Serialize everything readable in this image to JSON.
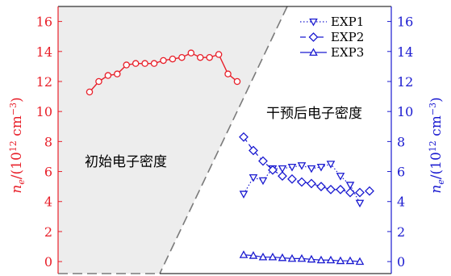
{
  "chart_data": {
    "type": "line",
    "title": "",
    "xlabel": "",
    "ylabel_left": "n",
    "ylabel_left_sub": "e",
    "ylabel_left_unit": "/(10",
    "ylabel_left_exp": "12",
    "ylabel_left_unit2": " cm",
    "ylabel_left_exp2": "−3",
    "ylabel_left_close": ")",
    "ylabel_right": "n",
    "ylabel_right_sub": "e",
    "ylabel_right_unit": "/(10",
    "ylabel_right_exp": "12",
    "ylabel_right_unit2": " cm",
    "ylabel_right_exp2": "−3",
    "ylabel_right_close": ")",
    "ylim": [
      -0.8,
      17
    ],
    "yticks": [
      "0",
      "2",
      "4",
      "6",
      "8",
      "10",
      "12",
      "14",
      "16"
    ],
    "left_axis_color": "#e8202a",
    "right_axis_color": "#1a1ad0",
    "annotations": {
      "left_region": "初始电子密度",
      "right_region": "干预后电子密度"
    },
    "initial_series": {
      "color": "#e8202a",
      "x": [
        0.5,
        1.5,
        2.5,
        3.5,
        4.5,
        5.5,
        6.5,
        7.5,
        8.5,
        9.5,
        10.5,
        11.5,
        12.5,
        13.5,
        14.5,
        15.5,
        16.5
      ],
      "values": [
        11.3,
        12.0,
        12.4,
        12.5,
        13.1,
        13.2,
        13.2,
        13.2,
        13.4,
        13.5,
        13.6,
        13.9,
        13.6,
        13.6,
        13.8,
        12.5,
        12.0
      ]
    },
    "series": [
      {
        "name": "EXP1",
        "marker": "triangle-down",
        "dash": "dotted",
        "color": "#1a1ad0",
        "x": [
          0.5,
          1.5,
          2.5,
          3.5,
          4.5,
          5.5,
          6.5,
          7.5,
          8.5,
          9.5,
          10.5,
          11.5,
          12.5
        ],
        "values": [
          4.5,
          5.6,
          5.4,
          6.2,
          6.2,
          6.3,
          6.4,
          6.2,
          6.3,
          6.5,
          5.7,
          5.1,
          3.9
        ]
      },
      {
        "name": "EXP2",
        "marker": "diamond",
        "dash": "dashed",
        "color": "#1a1ad0",
        "x": [
          0.5,
          1.5,
          2.5,
          3.5,
          4.5,
          5.5,
          6.5,
          7.5,
          8.5,
          9.5,
          10.5,
          11.5,
          12.5,
          13.5
        ],
        "values": [
          8.3,
          7.4,
          6.7,
          6.1,
          5.7,
          5.5,
          5.3,
          5.2,
          5.0,
          4.8,
          4.8,
          4.6,
          4.6,
          4.7
        ]
      },
      {
        "name": "EXP3",
        "marker": "triangle-up",
        "dash": "solid",
        "color": "#1a1ad0",
        "x": [
          0.5,
          1.5,
          2.5,
          3.5,
          4.5,
          5.5,
          6.5,
          7.5,
          8.5,
          9.5,
          10.5,
          11.5,
          12.5
        ],
        "values": [
          0.45,
          0.4,
          0.3,
          0.3,
          0.25,
          0.2,
          0.2,
          0.15,
          0.1,
          0.1,
          0.05,
          0.05,
          0.0
        ]
      }
    ],
    "legend_placement": "top-right",
    "grid": false
  }
}
